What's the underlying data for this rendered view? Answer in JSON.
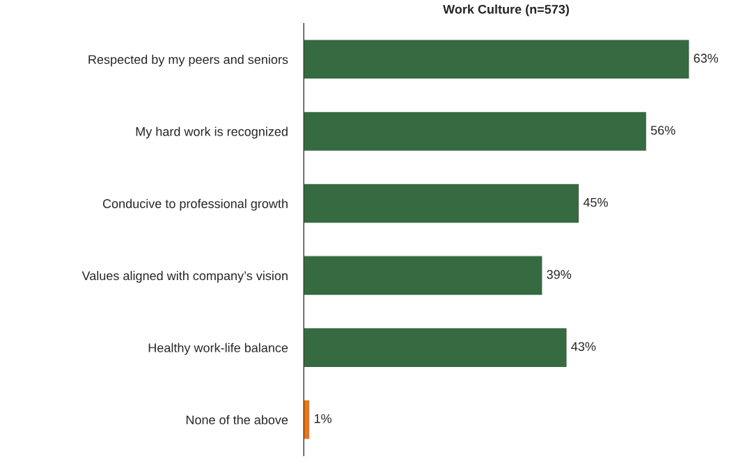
{
  "chart_data": {
    "type": "bar",
    "orientation": "horizontal",
    "title": "Work Culture (n=573)",
    "categories": [
      "Respected by my peers and seniors",
      "My hard work is recognized",
      "Conducive to professional growth",
      "Values aligned with company’s vision",
      "Healthy work-life balance",
      "None of the above"
    ],
    "values": [
      63,
      56,
      45,
      39,
      43,
      1
    ],
    "colors": [
      "#366a40",
      "#366a40",
      "#366a40",
      "#366a40",
      "#366a40",
      "#e8751a"
    ],
    "value_labels": [
      "63%",
      "56%",
      "45%",
      "39%",
      "43%",
      "1%"
    ],
    "tick_labels": "y"
  }
}
